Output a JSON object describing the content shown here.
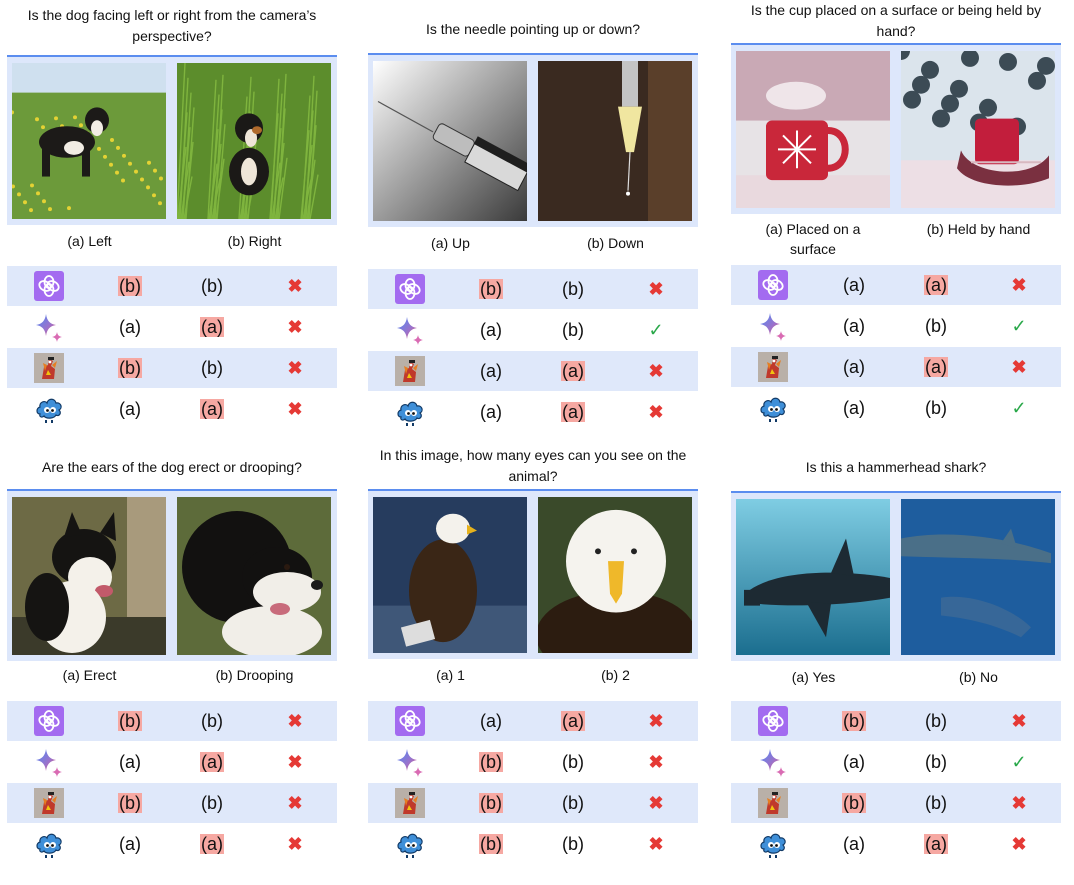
{
  "panels": [
    {
      "question": "Is the dog facing left or right from the camera’s perspective?",
      "option_a": "(a) Left",
      "option_b": "(b) Right",
      "rows": [
        {
          "model": "gpt",
          "img1": "(b)",
          "img1_hl": true,
          "img2": "(b)",
          "img2_hl": false,
          "result": "✖"
        },
        {
          "model": "gemini",
          "img1": "(a)",
          "img1_hl": false,
          "img2": "(a)",
          "img2_hl": true,
          "result": "✖"
        },
        {
          "model": "llava",
          "img1": "(b)",
          "img1_hl": true,
          "img2": "(b)",
          "img2_hl": false,
          "result": "✖"
        },
        {
          "model": "cloud",
          "img1": "(a)",
          "img1_hl": false,
          "img2": "(a)",
          "img2_hl": true,
          "result": "✖"
        }
      ]
    },
    {
      "question": "Is the needle pointing up or down?",
      "option_a": "(a) Up",
      "option_b": "(b) Down",
      "rows": [
        {
          "model": "gpt",
          "img1": "(b)",
          "img1_hl": true,
          "img2": "(b)",
          "img2_hl": false,
          "result": "✖"
        },
        {
          "model": "gemini",
          "img1": "(a)",
          "img1_hl": false,
          "img2": "(b)",
          "img2_hl": false,
          "result": "✓"
        },
        {
          "model": "llava",
          "img1": "(a)",
          "img1_hl": false,
          "img2": "(a)",
          "img2_hl": true,
          "result": "✖"
        },
        {
          "model": "cloud",
          "img1": "(a)",
          "img1_hl": false,
          "img2": "(a)",
          "img2_hl": true,
          "result": "✖"
        }
      ]
    },
    {
      "question": "Is the cup placed on a surface or being held by hand?",
      "option_a": "(a) Placed on a surface",
      "option_b": "(b) Held by hand",
      "rows": [
        {
          "model": "gpt",
          "img1": "(a)",
          "img1_hl": false,
          "img2": "(a)",
          "img2_hl": true,
          "result": "✖"
        },
        {
          "model": "gemini",
          "img1": "(a)",
          "img1_hl": false,
          "img2": "(b)",
          "img2_hl": false,
          "result": "✓"
        },
        {
          "model": "llava",
          "img1": "(a)",
          "img1_hl": false,
          "img2": "(a)",
          "img2_hl": true,
          "result": "✖"
        },
        {
          "model": "cloud",
          "img1": "(a)",
          "img1_hl": false,
          "img2": "(b)",
          "img2_hl": false,
          "result": "✓"
        }
      ]
    },
    {
      "question": "Are the ears of the dog erect or drooping?",
      "option_a": "(a) Erect",
      "option_b": "(b) Drooping",
      "rows": [
        {
          "model": "gpt",
          "img1": "(b)",
          "img1_hl": true,
          "img2": "(b)",
          "img2_hl": false,
          "result": "✖"
        },
        {
          "model": "gemini",
          "img1": "(a)",
          "img1_hl": false,
          "img2": "(a)",
          "img2_hl": true,
          "result": "✖"
        },
        {
          "model": "llava",
          "img1": "(b)",
          "img1_hl": true,
          "img2": "(b)",
          "img2_hl": false,
          "result": "✖"
        },
        {
          "model": "cloud",
          "img1": "(a)",
          "img1_hl": false,
          "img2": "(a)",
          "img2_hl": true,
          "result": "✖"
        }
      ]
    },
    {
      "question": "In this image, how many eyes can you see on the animal?",
      "option_a": "(a) 1",
      "option_b": "(b) 2",
      "rows": [
        {
          "model": "gpt",
          "img1": "(a)",
          "img1_hl": false,
          "img2": "(a)",
          "img2_hl": true,
          "result": "✖"
        },
        {
          "model": "gemini",
          "img1": "(b)",
          "img1_hl": true,
          "img2": "(b)",
          "img2_hl": false,
          "result": "✖"
        },
        {
          "model": "llava",
          "img1": "(b)",
          "img1_hl": true,
          "img2": "(b)",
          "img2_hl": false,
          "result": "✖"
        },
        {
          "model": "cloud",
          "img1": "(b)",
          "img1_hl": true,
          "img2": "(b)",
          "img2_hl": false,
          "result": "✖"
        }
      ]
    },
    {
      "question": "Is this a hammerhead shark?",
      "option_a": "(a) Yes",
      "option_b": "(b) No",
      "rows": [
        {
          "model": "gpt",
          "img1": "(b)",
          "img1_hl": true,
          "img2": "(b)",
          "img2_hl": false,
          "result": "✖"
        },
        {
          "model": "gemini",
          "img1": "(a)",
          "img1_hl": false,
          "img2": "(b)",
          "img2_hl": false,
          "result": "✓"
        },
        {
          "model": "llava",
          "img1": "(b)",
          "img1_hl": true,
          "img2": "(b)",
          "img2_hl": false,
          "result": "✖"
        },
        {
          "model": "cloud",
          "img1": "(a)",
          "img1_hl": false,
          "img2": "(a)",
          "img2_hl": true,
          "result": "✖"
        }
      ]
    }
  ]
}
